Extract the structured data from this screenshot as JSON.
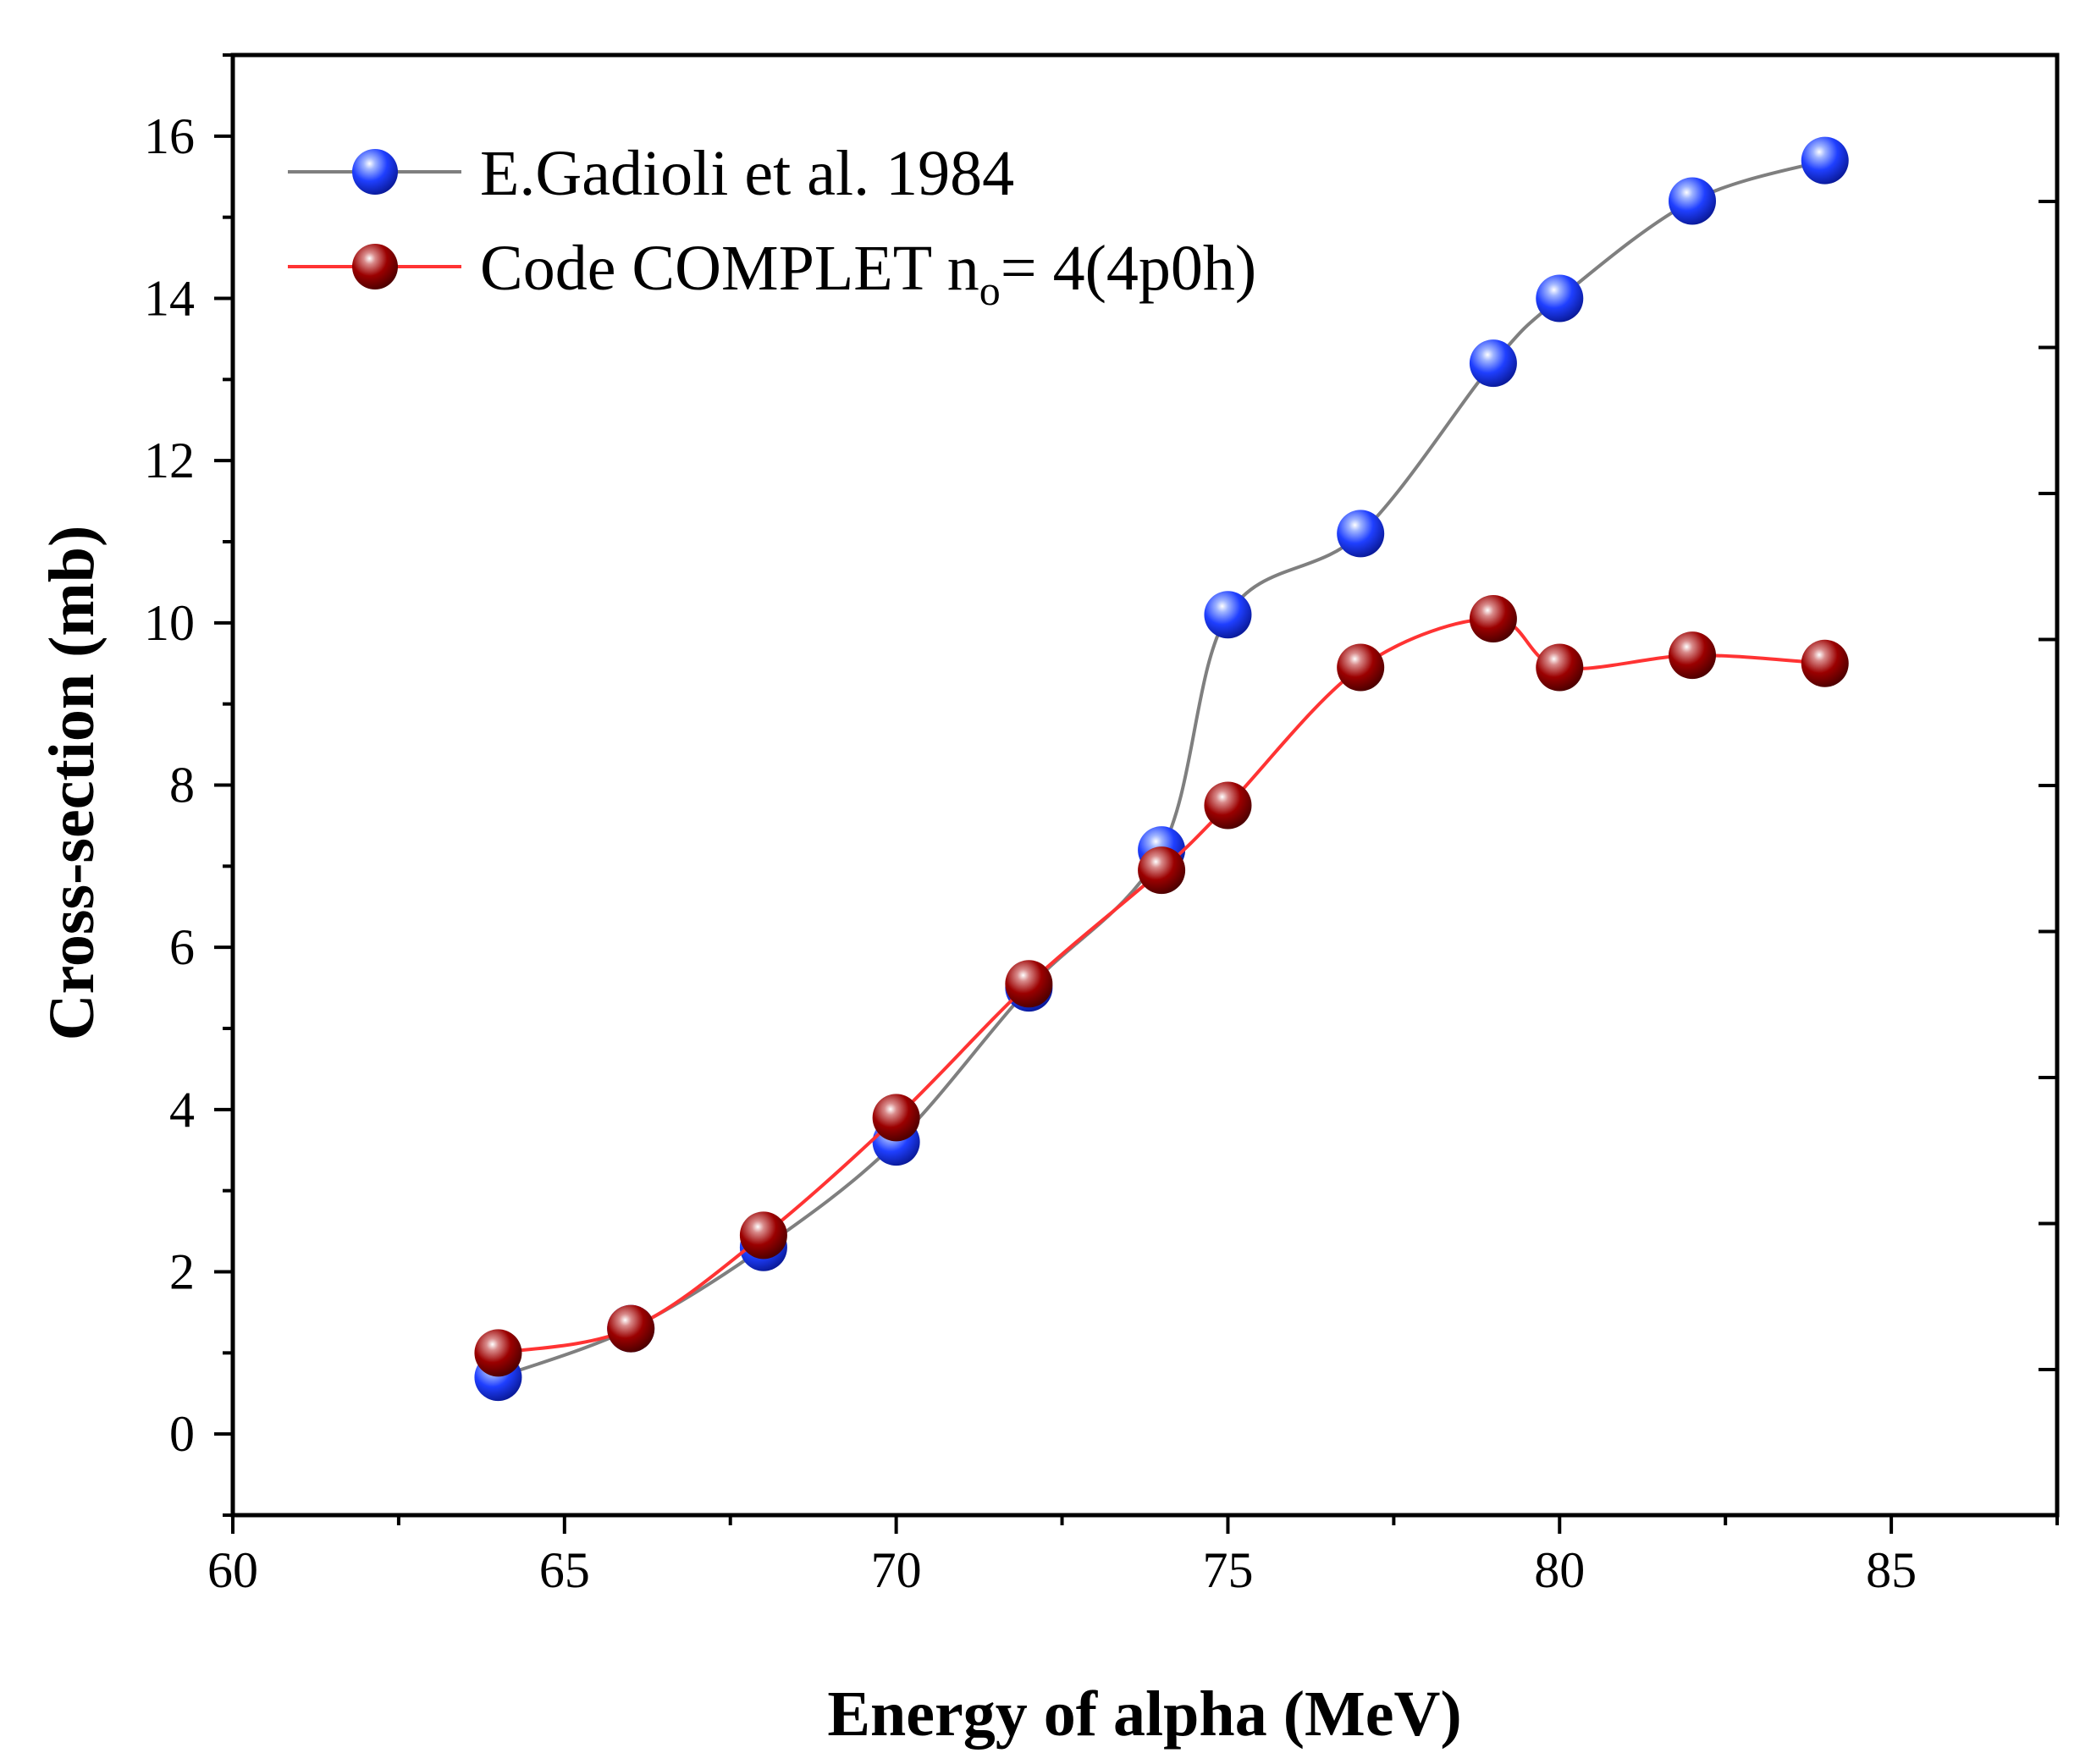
{
  "chart_data": {
    "type": "line",
    "title": "",
    "xlabel": "Energy of alpha (MeV)",
    "ylabel": "Cross-section (mb)",
    "xlim": [
      60,
      87.5
    ],
    "ylim": [
      -1,
      17
    ],
    "xticks": [
      60,
      65,
      70,
      75,
      80,
      85
    ],
    "yticks": [
      0,
      2,
      4,
      6,
      8,
      10,
      12,
      14,
      16
    ],
    "xtick_labels": [
      "60",
      "65",
      "70",
      "75",
      "80",
      "85"
    ],
    "ytick_labels": [
      "0",
      "2",
      "4",
      "6",
      "8",
      "10",
      "12",
      "14",
      "16"
    ],
    "x": [
      64,
      66,
      68,
      70,
      72,
      74,
      75,
      77,
      79,
      80,
      82,
      84
    ],
    "series": [
      {
        "name": "E.Gadioli et al. 1984",
        "line_color": "#7f7f7f",
        "marker_color": "#1f3fff",
        "values": [
          0.7,
          1.3,
          2.3,
          3.6,
          5.5,
          7.2,
          10.1,
          11.1,
          13.2,
          14.0,
          15.2,
          15.7
        ]
      },
      {
        "name": "Code COMPLET",
        "line_color": "#ff3333",
        "marker_color": "#9b0000",
        "values": [
          1.0,
          1.3,
          2.45,
          3.9,
          5.55,
          6.95,
          7.75,
          9.45,
          10.05,
          9.45,
          9.6,
          9.5
        ]
      }
    ],
    "legend": {
      "position": "top-left",
      "entries": [
        {
          "text": "E.Gadioli et al. 1984"
        },
        {
          "main": "Code COMPLET n",
          "sub": "o",
          "tail": "= 4(4p0h)"
        }
      ]
    },
    "grid": false
  }
}
